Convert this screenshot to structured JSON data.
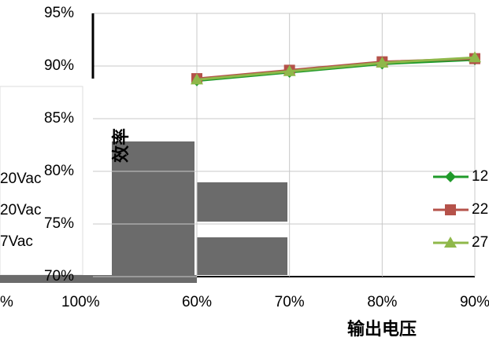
{
  "chart_data": {
    "type": "line",
    "y_label": "效率",
    "x_label": "输出电压",
    "categories": [
      "60%",
      "70%",
      "80%",
      "90%"
    ],
    "ylim": [
      70,
      95
    ],
    "yticks": [
      {
        "value": 70,
        "label": "70%"
      },
      {
        "value": 75,
        "label": "75%"
      },
      {
        "value": 80,
        "label": "80%"
      },
      {
        "value": 85,
        "label": "85%"
      },
      {
        "value": 90,
        "label": "90%"
      },
      {
        "value": 95,
        "label": "95%"
      }
    ],
    "grid": true,
    "legend": "right",
    "series": [
      {
        "name": "12",
        "color": "#1f9a2a",
        "marker": "diamond",
        "values": [
          88.6,
          89.4,
          90.2,
          90.6
        ]
      },
      {
        "name": "22",
        "color": "#b5524a",
        "marker": "square",
        "values": [
          88.8,
          89.6,
          90.4,
          90.7
        ]
      },
      {
        "name": "27",
        "color": "#8fb84a",
        "marker": "triangle",
        "values": [
          88.7,
          89.5,
          90.3,
          90.8
        ]
      }
    ],
    "fragments": [
      "20Vac",
      "20Vac",
      "7Vac",
      "%",
      "100%"
    ]
  }
}
